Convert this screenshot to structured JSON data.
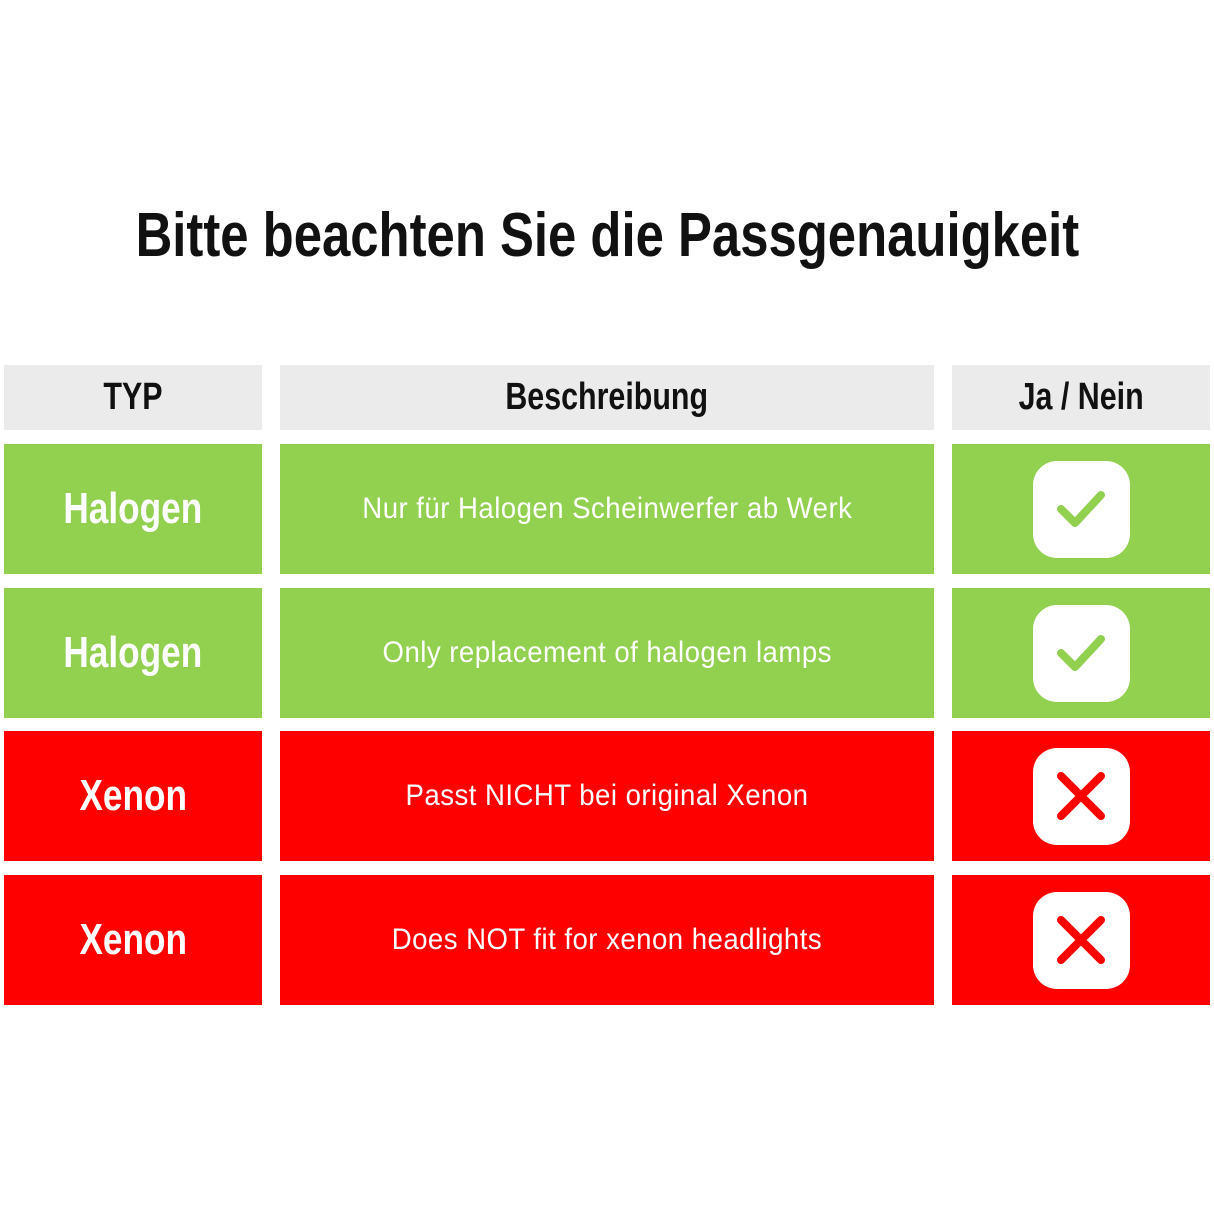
{
  "title": "Bitte beachten Sie die Passgenauigkeit",
  "colors": {
    "ok": "#92d050",
    "no": "#ff0000",
    "header": "#ebebeb"
  },
  "table": {
    "headers": [
      "TYP",
      "Beschreibung",
      "Ja / Nein"
    ],
    "rows": [
      {
        "typ": "Halogen",
        "beschreibung": "Nur für Halogen Scheinwerfer ab Werk",
        "status": "check-icon"
      },
      {
        "typ": "Halogen",
        "beschreibung": "Only replacement of halogen lamps",
        "status": "check-icon"
      },
      {
        "typ": "Xenon",
        "beschreibung": "Passt NICHT bei original Xenon",
        "status": "cross-icon"
      },
      {
        "typ": "Xenon",
        "beschreibung": "Does NOT fit for xenon headlights",
        "status": "cross-icon"
      }
    ]
  }
}
